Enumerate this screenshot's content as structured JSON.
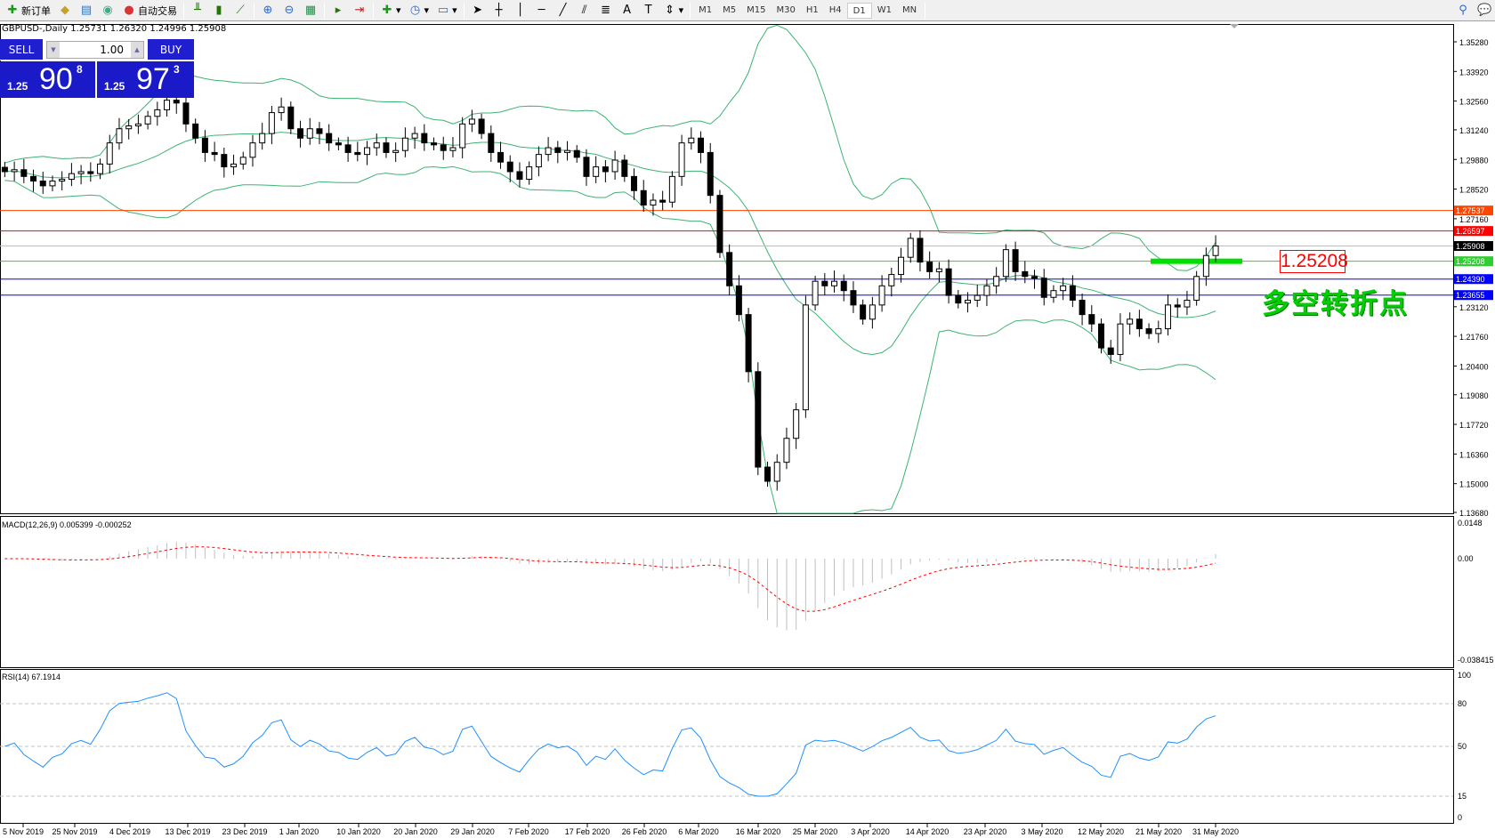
{
  "toolbar": {
    "new_order": "新订单",
    "auto_trading": "自动交易",
    "timeframes": [
      "M1",
      "M5",
      "M15",
      "M30",
      "H1",
      "H4",
      "D1",
      "W1",
      "MN"
    ],
    "active_timeframe": "D1"
  },
  "chart": {
    "symbol_header": "GBPUSD-,Daily  1.25731 1.26320 1.24996 1.25908",
    "trade_panel": {
      "sell_label": "SELL",
      "buy_label": "BUY",
      "lot": "1.00",
      "sell_prefix": "1.25",
      "sell_big": "90",
      "sell_sup": "8",
      "buy_prefix": "1.25",
      "buy_big": "97",
      "buy_sup": "3"
    },
    "price_axis": [
      "1.35280",
      "1.33920",
      "1.32560",
      "1.31240",
      "1.29880",
      "1.28520",
      "1.27160",
      "1.23120",
      "1.21760",
      "1.20400",
      "1.19080",
      "1.17720",
      "1.16360",
      "1.15000",
      "1.13680"
    ],
    "price_range": [
      1.1368,
      1.3528
    ],
    "hlines": [
      {
        "price": 1.27537,
        "label": "1.27537",
        "color": "#ff4500"
      },
      {
        "price": 1.26597,
        "label": "1.26597",
        "color": "#ff0000"
      },
      {
        "price": 1.25908,
        "label": "1.25908",
        "color": "#000000",
        "line": "#c0c0c0"
      },
      {
        "price": 1.25208,
        "label": "1.25208",
        "color": "#32cd32"
      },
      {
        "price": 1.2439,
        "label": "1.24390",
        "color": "#0000ff"
      },
      {
        "price": 1.23655,
        "label": "1.23655",
        "color": "#0000ff"
      }
    ],
    "annotation_price": "1.25208",
    "annotation_text": "多空转折点",
    "closes": [
      1.2932,
      1.2941,
      1.291,
      1.2889,
      1.2867,
      1.2889,
      1.2897,
      1.2923,
      1.2932,
      1.2923,
      1.2967,
      1.3064,
      1.3129,
      1.3142,
      1.3151,
      1.3186,
      1.3216,
      1.326,
      1.3247,
      1.3151,
      1.3086,
      1.302,
      1.3011,
      1.2954,
      1.2967,
      1.2998,
      1.3064,
      1.3107,
      1.3203,
      1.3229,
      1.3129,
      1.3086,
      1.3129,
      1.3107,
      1.3064,
      1.3055,
      1.302,
      1.3011,
      1.3042,
      1.3064,
      1.302,
      1.3029,
      1.3086,
      1.3107,
      1.3064,
      1.3055,
      1.3029,
      1.3042,
      1.3151,
      1.3173,
      1.3107,
      1.302,
      1.2976,
      1.2932,
      1.2897,
      1.2954,
      1.3011,
      1.3042,
      1.302,
      1.3029,
      1.2998,
      1.291,
      1.2954,
      1.2932,
      1.2985,
      1.291,
      1.2845,
      1.2779,
      1.2801,
      1.2792,
      1.291,
      1.3064,
      1.3086,
      1.302,
      1.2823,
      1.2561,
      1.2408,
      1.2276,
      1.2014,
      1.1576,
      1.1511,
      1.1598,
      1.1708,
      1.1839,
      1.232,
      1.2429,
      1.2408,
      1.2429,
      1.2386,
      1.232,
      1.2255,
      1.232,
      1.2408,
      1.246,
      1.2539,
      1.2626,
      1.2517,
      1.2473,
      1.2486,
      1.2364,
      1.2329,
      1.2342,
      1.2364,
      1.2408,
      1.2451,
      1.2574,
      1.2473,
      1.2451,
      1.2443,
      1.2355,
      1.2386,
      1.2408,
      1.2342,
      1.2276,
      1.2233,
      1.2123,
      1.2093,
      1.2233,
      1.2255,
      1.2211,
      1.2189,
      1.2211,
      1.232,
      1.2311,
      1.2342,
      1.2451,
      1.2547,
      1.2591
    ],
    "dates": [
      "5 Nov 2019",
      "25 Nov 2019",
      "4 Dec 2019",
      "13 Dec 2019",
      "23 Dec 2019",
      "1 Jan 2020",
      "10 Jan 2020",
      "20 Jan 2020",
      "29 Jan 2020",
      "7 Feb 2020",
      "17 Feb 2020",
      "26 Feb 2020",
      "6 Mar 2020",
      "16 Mar 2020",
      "25 Mar 2020",
      "3 Apr 2020",
      "14 Apr 2020",
      "23 Apr 2020",
      "3 May 2020",
      "12 May 2020",
      "21 May 2020",
      "31 May 2020"
    ]
  },
  "macd": {
    "label": "MACD(12,26,9) 0.005399 -0.000252",
    "axis": [
      "0.0148",
      "0.00",
      "-0.038415"
    ],
    "signal_color": "#ff0000",
    "hist_color": "#c0c0c0"
  },
  "rsi": {
    "label": "RSI(14) 67.1914",
    "axis": [
      "100",
      "80",
      "50",
      "15",
      "0"
    ],
    "levels": [
      80,
      50,
      15
    ],
    "color": "#1e90ff"
  },
  "colors": {
    "bands": "#3cb371",
    "up": "#ffffff",
    "down": "#000000"
  }
}
